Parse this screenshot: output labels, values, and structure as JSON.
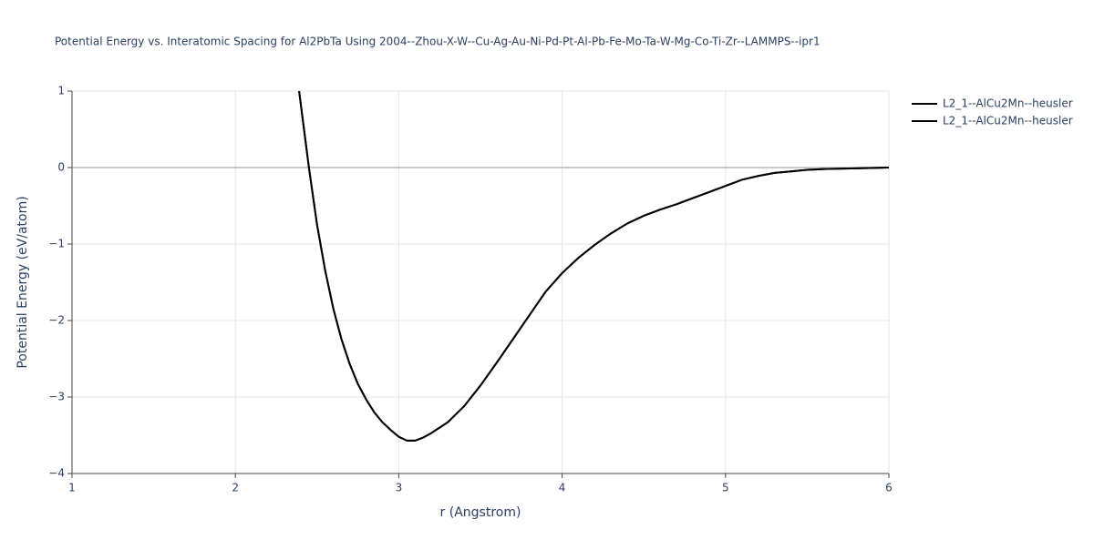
{
  "chart_data": {
    "type": "line",
    "title": "Potential Energy vs. Interatomic Spacing for Al2PbTa Using 2004--Zhou-X-W--Cu-Ag-Au-Ni-Pd-Pt-Al-Pb-Fe-Mo-Ta-W-Mg-Co-Ti-Zr--LAMMPS--ipr1",
    "x_label": "r (Angstrom)",
    "y_label": "Potential Energy (eV/atom)",
    "x": [
      2.39,
      2.45,
      2.5,
      2.55,
      2.6,
      2.65,
      2.7,
      2.75,
      2.8,
      2.85,
      2.9,
      2.95,
      3.0,
      3.05,
      3.1,
      3.15,
      3.2,
      3.3,
      3.4,
      3.5,
      3.6,
      3.7,
      3.8,
      3.9,
      4.0,
      4.1,
      4.2,
      4.3,
      4.4,
      4.5,
      4.6,
      4.7,
      4.8,
      4.9,
      5.0,
      5.1,
      5.2,
      5.3,
      5.4,
      5.5,
      5.6,
      5.8,
      6.0
    ],
    "series": [
      {
        "name": "L2_1--AlCu2Mn--heusler",
        "color": "#000000",
        "values": [
          1.0,
          0.0,
          -0.75,
          -1.35,
          -1.85,
          -2.25,
          -2.57,
          -2.83,
          -3.03,
          -3.2,
          -3.33,
          -3.43,
          -3.52,
          -3.57,
          -3.57,
          -3.53,
          -3.47,
          -3.33,
          -3.12,
          -2.85,
          -2.55,
          -2.24,
          -1.93,
          -1.62,
          -1.38,
          -1.18,
          -1.01,
          -0.86,
          -0.73,
          -0.63,
          -0.55,
          -0.48,
          -0.4,
          -0.32,
          -0.24,
          -0.16,
          -0.11,
          -0.07,
          -0.05,
          -0.03,
          -0.02,
          -0.01,
          0.0
        ]
      },
      {
        "name": "L2_1--AlCu2Mn--heusler",
        "color": "#000000",
        "values": [
          1.0,
          0.0,
          -0.75,
          -1.35,
          -1.85,
          -2.25,
          -2.57,
          -2.83,
          -3.03,
          -3.2,
          -3.33,
          -3.43,
          -3.52,
          -3.57,
          -3.57,
          -3.53,
          -3.47,
          -3.33,
          -3.12,
          -2.85,
          -2.55,
          -2.24,
          -1.93,
          -1.62,
          -1.38,
          -1.18,
          -1.01,
          -0.86,
          -0.73,
          -0.63,
          -0.55,
          -0.48,
          -0.4,
          -0.32,
          -0.24,
          -0.16,
          -0.11,
          -0.07,
          -0.05,
          -0.03,
          -0.02,
          -0.01,
          0.0
        ]
      }
    ],
    "xlim": [
      1,
      6
    ],
    "ylim": [
      -4,
      1
    ],
    "xticks": [
      1,
      2,
      3,
      4,
      5,
      6
    ],
    "yticks": [
      {
        "value": -4,
        "label": "−4"
      },
      {
        "value": -3,
        "label": "−3"
      },
      {
        "value": -2,
        "label": "−2"
      },
      {
        "value": -1,
        "label": "−1"
      },
      0,
      1
    ],
    "grid": true,
    "legend": "right"
  }
}
